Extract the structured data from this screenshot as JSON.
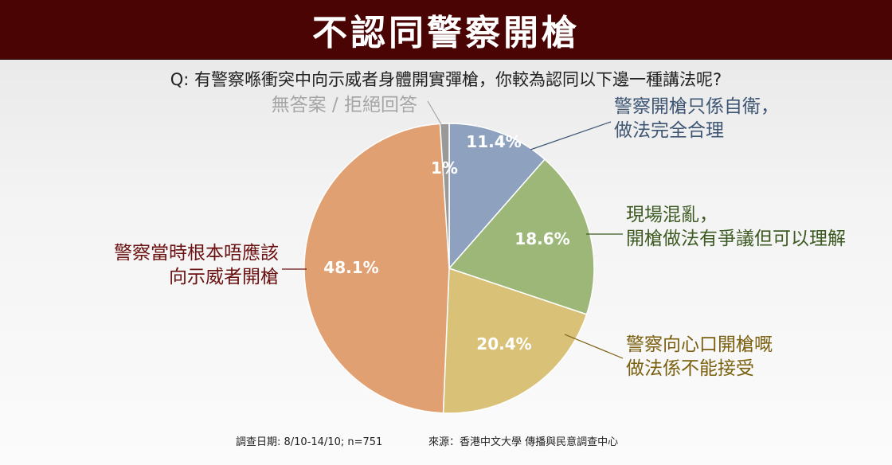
{
  "title": "不認同警察開槍",
  "question": "Q: 有警察喺衝突中向示威者身體開實彈槍，你較為認同以下邊一種講法呢?",
  "footer": {
    "survey_date": "調查日期: 8/10-14/10; n=751",
    "source": "來源：香港中文大學 傳播與民意調查中心"
  },
  "colors": {
    "title_bg": "#4a0404",
    "self_defense": "#8ea2c0",
    "understandable": "#9db779",
    "unacceptable": "#d9c278",
    "should_not": "#e1a072",
    "no_answer": "#999999"
  },
  "chart_data": {
    "type": "pie",
    "unit": "%",
    "start": "12 o'clock, clockwise",
    "slices": [
      {
        "key": "self_defense",
        "label_lines": [
          "警察開槍只係自衛，",
          "做法完全合理"
        ],
        "value": 11.4,
        "value_label": "11.4%",
        "color": "#8ea2c0",
        "label_color": "#3e5673"
      },
      {
        "key": "understandable",
        "label_lines": [
          "現場混亂，",
          "開槍做法有爭議但可以理解"
        ],
        "value": 18.6,
        "value_label": "18.6%",
        "color": "#9db779",
        "label_color": "#3c5a22"
      },
      {
        "key": "unacceptable",
        "label_lines": [
          "警察向心口開槍嘅",
          "做法係不能接受"
        ],
        "value": 20.4,
        "value_label": "20.4%",
        "color": "#d9c278",
        "label_color": "#7a5f0e"
      },
      {
        "key": "should_not",
        "label_lines": [
          "警察當時根本唔應該",
          "向示威者開槍"
        ],
        "value": 48.1,
        "value_label": "48.1%",
        "color": "#e1a072",
        "label_color": "#6b1010"
      },
      {
        "key": "no_answer",
        "label_lines": [
          "無答案 / 拒絕回答"
        ],
        "value": 1,
        "value_label": "1%",
        "color": "#999999",
        "label_color": "#a6a6a6"
      }
    ]
  }
}
